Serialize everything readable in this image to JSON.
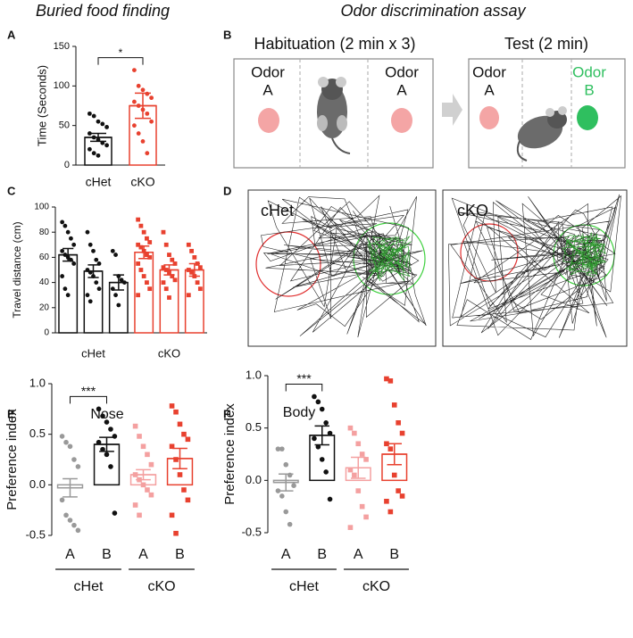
{
  "headings": [
    "Buried food finding",
    "Odor discrimination assay"
  ],
  "chart_data": [
    {
      "type": "bar",
      "panel": "A",
      "ylabel": "Time (Seconds)",
      "categories": [
        "cHet",
        "cKO"
      ],
      "values": [
        35,
        75
      ],
      "errors": [
        5,
        16
      ],
      "colors": [
        "#111111",
        "#e8412f"
      ],
      "markers": [
        "circle",
        "circle"
      ],
      "points": [
        [
          65,
          62,
          55,
          52,
          48,
          40,
          35,
          32,
          28,
          25,
          20,
          15,
          12
        ],
        [
          120,
          100,
          95,
          90,
          85,
          80,
          75,
          70,
          65,
          55,
          50,
          40,
          30,
          15
        ]
      ],
      "significance": "*",
      "ylim": [
        0,
        150
      ],
      "yticks": [
        0,
        50,
        100,
        150
      ]
    },
    {
      "type": "bar",
      "panel": "C",
      "ylabel": "Travel distance (cm)",
      "categories": [
        null,
        null,
        null,
        null,
        null,
        null
      ],
      "groups": [
        "cHet",
        "cKO"
      ],
      "values": [
        62,
        49,
        40,
        64,
        50,
        50
      ],
      "errors": [
        5,
        5,
        6,
        5,
        4,
        5
      ],
      "colors": [
        "#111111",
        "#111111",
        "#111111",
        "#e8412f",
        "#e8412f",
        "#e8412f"
      ],
      "markers": [
        "circle",
        "circle",
        "circle",
        "square",
        "square",
        "square"
      ],
      "points": [
        [
          88,
          85,
          80,
          75,
          70,
          65,
          62,
          60,
          58,
          55,
          45,
          35,
          30
        ],
        [
          80,
          70,
          65,
          58,
          55,
          50,
          48,
          45,
          40,
          35,
          30,
          25
        ],
        [
          65,
          62,
          45,
          42,
          40,
          35,
          30,
          22
        ],
        [
          90,
          85,
          80,
          75,
          72,
          70,
          68,
          65,
          62,
          60,
          55,
          50,
          45,
          40,
          35,
          30
        ],
        [
          80,
          70,
          62,
          58,
          55,
          52,
          50,
          48,
          45,
          42,
          40,
          35,
          28
        ],
        [
          70,
          65,
          60,
          55,
          52,
          50,
          48,
          45,
          40,
          35,
          30
        ]
      ],
      "ylim": [
        0,
        100
      ],
      "yticks": [
        0,
        20,
        40,
        60,
        80,
        100
      ]
    },
    {
      "type": "bar",
      "panel": "E",
      "title": "Nose",
      "ylabel": "Preference index",
      "categories": [
        "A",
        "B",
        "A",
        "B"
      ],
      "groups": [
        "cHet",
        "cKO"
      ],
      "values": [
        -0.03,
        0.4,
        0.1,
        0.26
      ],
      "errors": [
        0.09,
        0.07,
        0.05,
        0.1
      ],
      "colors": [
        "#999999",
        "#111111",
        "#f4a0a0",
        "#e8412f"
      ],
      "markers": [
        "circle",
        "circle",
        "square",
        "square"
      ],
      "points": [
        [
          0.48,
          0.42,
          0.38,
          0.25,
          0.18,
          -0.15,
          -0.3,
          -0.35,
          -0.4,
          -0.45
        ],
        [
          0.75,
          0.68,
          0.62,
          0.55,
          0.48,
          0.42,
          0.35,
          0.3,
          0.18,
          -0.28
        ],
        [
          0.58,
          0.48,
          0.38,
          0.3,
          0.2,
          0.1,
          0.05,
          0.0,
          -0.05,
          -0.1,
          -0.2,
          -0.3
        ],
        [
          0.78,
          0.72,
          0.6,
          0.5,
          0.45,
          0.38,
          0.25,
          0.1,
          -0.05,
          -0.15,
          -0.3,
          -0.48
        ]
      ],
      "significance": "***",
      "ylim": [
        -0.5,
        1.0
      ],
      "yticks": [
        -0.5,
        {
          "value": 0,
          "label": "0.0"
        },
        0.5,
        {
          "value": 1,
          "label": "1.0"
        }
      ]
    },
    {
      "type": "bar",
      "panel": "F",
      "title": "Body",
      "ylabel": "Preference index",
      "categories": [
        "A",
        "B",
        "A",
        "B"
      ],
      "groups": [
        "cHet",
        "cKO"
      ],
      "values": [
        -0.02,
        0.43,
        0.12,
        0.25
      ],
      "errors": [
        0.08,
        0.09,
        0.1,
        0.1
      ],
      "colors": [
        "#999999",
        "#111111",
        "#f4a0a0",
        "#e8412f"
      ],
      "markers": [
        "circle",
        "circle",
        "square",
        "square"
      ],
      "points": [
        [
          0.3,
          0.3,
          0.15,
          0.05,
          -0.05,
          -0.1,
          -0.15,
          -0.3,
          -0.42
        ],
        [
          0.8,
          0.75,
          0.68,
          0.55,
          0.45,
          0.4,
          0.32,
          0.2,
          0.08,
          -0.18
        ],
        [
          0.5,
          0.45,
          0.35,
          0.25,
          0.2,
          0.1,
          0.05,
          -0.1,
          -0.25,
          -0.35,
          -0.45
        ],
        [
          0.97,
          0.95,
          0.72,
          0.55,
          0.45,
          0.35,
          0.3,
          0.05,
          -0.1,
          -0.15,
          -0.2,
          -0.3
        ]
      ],
      "significance": "***",
      "ylim": [
        -0.5,
        1.0
      ],
      "yticks": [
        -0.5,
        {
          "value": 0,
          "label": "0.0"
        },
        0.5,
        {
          "value": 1,
          "label": "1.0"
        }
      ]
    }
  ],
  "diagram": {
    "panel": "B",
    "habituation": {
      "title": "Habituation (2 min x 3)",
      "left": [
        "Odor",
        "A"
      ],
      "right": [
        "Odor",
        "A"
      ]
    },
    "test": {
      "title": "Test (2 min)",
      "left": [
        "Odor",
        "A"
      ],
      "right": [
        "Odor",
        "B"
      ]
    }
  },
  "tracks": {
    "panel": "D",
    "labels": [
      "cHet",
      "cKO"
    ]
  }
}
